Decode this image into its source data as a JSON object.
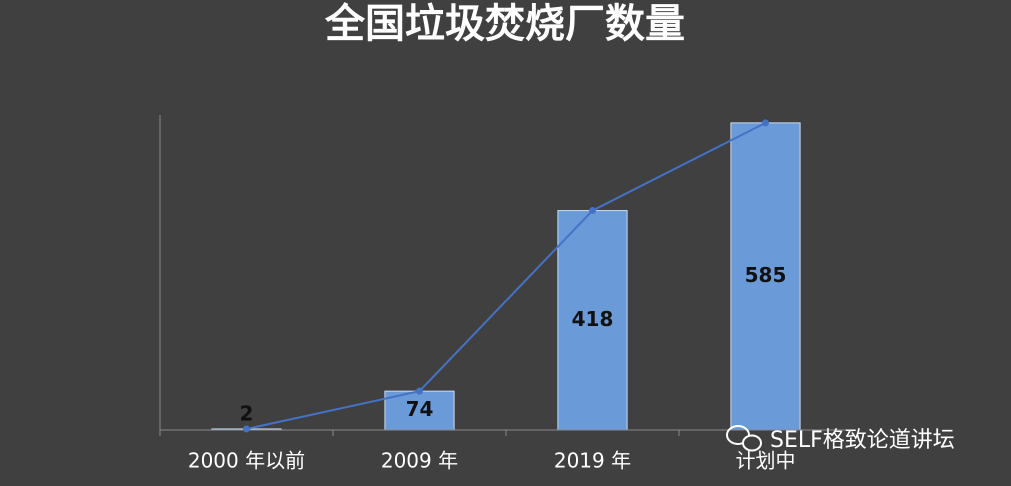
{
  "chart_data": {
    "type": "bar",
    "title": "全国垃圾焚烧厂数量",
    "categories": [
      "2000 年以前",
      "2009 年",
      "2019 年",
      "计划中"
    ],
    "values": [
      2,
      74,
      418,
      585
    ],
    "color": "#6a9bd8",
    "line_overlay": true,
    "line_color": "#4472c4",
    "ylim": [
      0,
      600
    ],
    "grid": false,
    "watermark": "SELF格致论道讲坛"
  }
}
